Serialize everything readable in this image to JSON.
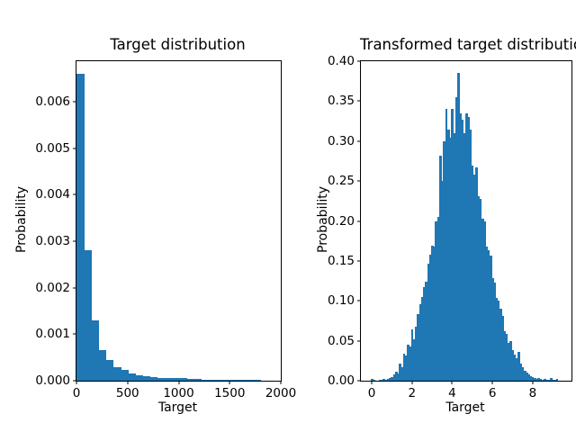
{
  "figure": {
    "background": "#ffffff",
    "bar_color": "#1f77b4",
    "axis_color": "#000000",
    "text_color": "#000000"
  },
  "chart_data": [
    {
      "type": "bar",
      "kind": "histogram",
      "title": "Target distribution",
      "xlabel": "Target",
      "ylabel": "Probability",
      "legend": "none",
      "grid": false,
      "xlim": [
        0,
        2000
      ],
      "ylim": [
        0,
        0.00687
      ],
      "xtick_values": [
        0,
        500,
        1000,
        1500,
        2000
      ],
      "xtick_labels": [
        "0",
        "500",
        "1000",
        "1500",
        "2000"
      ],
      "ytick_values": [
        0.0,
        0.001,
        0.002,
        0.003,
        0.004,
        0.005,
        0.006
      ],
      "ytick_labels": [
        "0.000",
        "0.001",
        "0.002",
        "0.003",
        "0.004",
        "0.005",
        "0.006"
      ],
      "bin_start": 0,
      "bin_width": 72,
      "values": [
        0.0066,
        0.0028,
        0.0013,
        0.00066,
        0.00044,
        0.0003,
        0.00023,
        0.00016,
        0.00012,
        9e-05,
        7e-05,
        6e-05,
        5e-05,
        6e-05,
        5e-05,
        3e-05,
        3e-05,
        2e-05,
        2e-05,
        2e-05,
        1e-05,
        1e-05,
        1e-05,
        1e-05,
        1e-05
      ]
    },
    {
      "type": "bar",
      "kind": "histogram",
      "title": "Transformed target distribution",
      "xlabel": "Target",
      "ylabel": "Probability",
      "legend": "none",
      "grid": false,
      "xlim": [
        -0.54,
        9.93
      ],
      "ylim": [
        0,
        0.4
      ],
      "xtick_values": [
        0,
        2,
        4,
        6,
        8
      ],
      "xtick_labels": [
        "0",
        "2",
        "4",
        "6",
        "8"
      ],
      "ytick_values": [
        0.0,
        0.05,
        0.1,
        0.15,
        0.2,
        0.25,
        0.3,
        0.35,
        0.4
      ],
      "ytick_labels": [
        "0.00",
        "0.05",
        "0.10",
        "0.15",
        "0.20",
        "0.25",
        "0.30",
        "0.35",
        "0.40"
      ],
      "bin_start": -0.05,
      "bin_width": 0.1,
      "values": [
        0.002,
        0.001,
        0,
        0,
        0.001,
        0.001,
        0.002,
        0.001,
        0.002,
        0.003,
        0.0045,
        0.0075,
        0.011,
        0.009,
        0.021,
        0.017,
        0.034,
        0.032,
        0.045,
        0.043,
        0.064,
        0.052,
        0.068,
        0.083,
        0.096,
        0.105,
        0.117,
        0.124,
        0.147,
        0.158,
        0.169,
        0.168,
        0.199,
        0.205,
        0.282,
        0.25,
        0.3,
        0.34,
        0.314,
        0.304,
        0.34,
        0.31,
        0.355,
        0.385,
        0.335,
        0.327,
        0.31,
        0.335,
        0.33,
        0.314,
        0.269,
        0.258,
        0.267,
        0.231,
        0.228,
        0.203,
        0.199,
        0.168,
        0.163,
        0.157,
        0.128,
        0.123,
        0.104,
        0.1,
        0.09,
        0.081,
        0.062,
        0.059,
        0.047,
        0.05,
        0.038,
        0.033,
        0.028,
        0.036,
        0.021,
        0.017,
        0.012,
        0.01,
        0.008,
        0.006,
        0.004,
        0.003,
        0.002,
        0.003,
        0.002,
        0.001,
        0.002,
        0.001,
        0.001,
        0.003,
        0.001,
        0.001,
        0.002
      ]
    }
  ]
}
